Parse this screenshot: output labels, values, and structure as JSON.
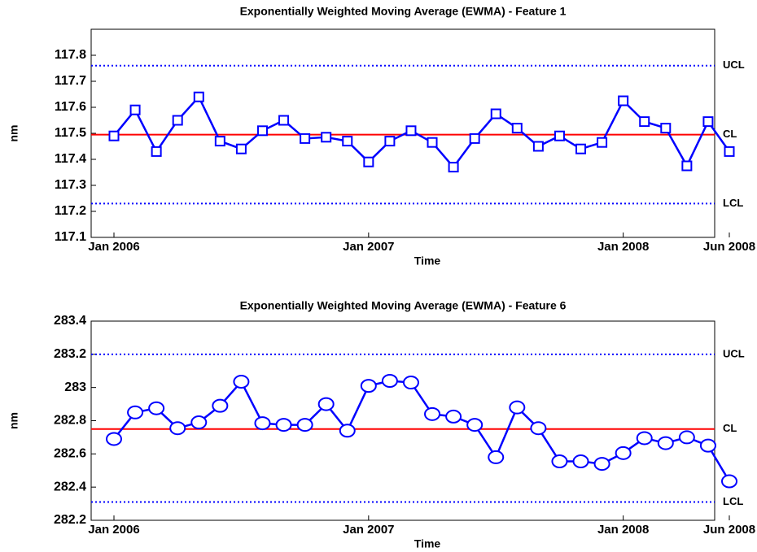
{
  "chart_data": [
    {
      "type": "line",
      "title": "Exponentially Weighted Moving Average (EWMA) - Feature 1",
      "xlabel": "Time",
      "ylabel": "nm",
      "marker": "square",
      "color": "#0000ff",
      "x": [
        1,
        2,
        3,
        4,
        5,
        6,
        7,
        8,
        9,
        10,
        11,
        12,
        13,
        14,
        15,
        16,
        17,
        18,
        19,
        20,
        21,
        22,
        23,
        24,
        25,
        26,
        27,
        28,
        29,
        30
      ],
      "values": [
        117.49,
        117.59,
        117.43,
        117.55,
        117.64,
        117.47,
        117.44,
        117.51,
        117.55,
        117.48,
        117.485,
        117.47,
        117.39,
        117.47,
        117.51,
        117.465,
        117.37,
        117.48,
        117.575,
        117.52,
        117.45,
        117.49,
        117.44,
        117.465,
        117.625,
        117.545,
        117.52,
        117.375,
        117.545,
        117.43
      ],
      "xlim": [
        1,
        30
      ],
      "xticks": [
        {
          "value": 1,
          "label": "Jan 2006"
        },
        {
          "value": 13,
          "label": "Jan 2007"
        },
        {
          "value": 25,
          "label": "Jan 2008"
        },
        {
          "value": 30,
          "label": "Jun 2008"
        }
      ],
      "ylim": [
        117.1,
        117.9
      ],
      "yticks": [
        117.1,
        117.2,
        117.3,
        117.4,
        117.5,
        117.6,
        117.7,
        117.8
      ],
      "control_limits": [
        {
          "label": "UCL",
          "value": 117.76,
          "color": "#0000ff",
          "dashed": true
        },
        {
          "label": "CL",
          "value": 117.495,
          "color": "#ff0000",
          "dashed": false
        },
        {
          "label": "LCL",
          "value": 117.23,
          "color": "#0000ff",
          "dashed": true
        }
      ]
    },
    {
      "type": "line",
      "title": "Exponentially Weighted Moving Average (EWMA) - Feature 6",
      "xlabel": "Time",
      "ylabel": "nm",
      "marker": "circle",
      "color": "#0000ff",
      "x": [
        1,
        2,
        3,
        4,
        5,
        6,
        7,
        8,
        9,
        10,
        11,
        12,
        13,
        14,
        15,
        16,
        17,
        18,
        19,
        20,
        21,
        22,
        23,
        24,
        25,
        26,
        27,
        28,
        29,
        30
      ],
      "values": [
        282.69,
        282.85,
        282.875,
        282.755,
        282.79,
        282.89,
        283.035,
        282.785,
        282.775,
        282.775,
        282.9,
        282.74,
        283.01,
        283.04,
        283.03,
        282.84,
        282.825,
        282.775,
        282.58,
        282.88,
        282.755,
        282.555,
        282.555,
        282.54,
        282.605,
        282.695,
        282.665,
        282.7,
        282.65,
        282.435
      ],
      "xlim": [
        1,
        30
      ],
      "xticks": [
        {
          "value": 1,
          "label": "Jan 2006"
        },
        {
          "value": 13,
          "label": "Jan 2007"
        },
        {
          "value": 25,
          "label": "Jan 2008"
        },
        {
          "value": 30,
          "label": "Jun 2008"
        }
      ],
      "ylim": [
        282.2,
        283.4
      ],
      "yticks": [
        282.2,
        282.4,
        282.6,
        282.8,
        283,
        283.2,
        283.4
      ],
      "control_limits": [
        {
          "label": "UCL",
          "value": 283.2,
          "color": "#0000ff",
          "dashed": true
        },
        {
          "label": "CL",
          "value": 282.75,
          "color": "#ff0000",
          "dashed": false
        },
        {
          "label": "LCL",
          "value": 282.31,
          "color": "#0000ff",
          "dashed": true
        }
      ]
    }
  ]
}
